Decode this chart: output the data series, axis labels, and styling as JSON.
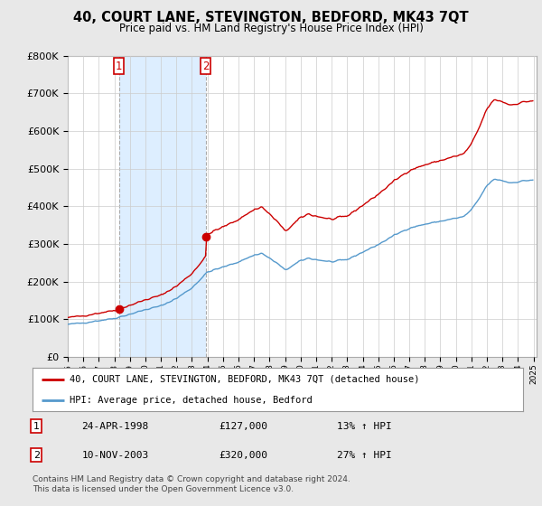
{
  "title": "40, COURT LANE, STEVINGTON, BEDFORD, MK43 7QT",
  "subtitle": "Price paid vs. HM Land Registry's House Price Index (HPI)",
  "purchase1_price": 127000,
  "purchase1_label": "24-APR-1998",
  "purchase1_hpi": "13% ↑ HPI",
  "purchase2_price": 320000,
  "purchase2_label": "10-NOV-2003",
  "purchase2_hpi": "27% ↑ HPI",
  "line1_label": "40, COURT LANE, STEVINGTON, BEDFORD, MK43 7QT (detached house)",
  "line2_label": "HPI: Average price, detached house, Bedford",
  "line1_color": "#cc0000",
  "line2_color": "#5599cc",
  "shade_color": "#ddeeff",
  "vline_color": "#aaaaaa",
  "footnote": "Contains HM Land Registry data © Crown copyright and database right 2024.\nThis data is licensed under the Open Government Licence v3.0.",
  "ylim": [
    0,
    800000
  ],
  "yticks": [
    0,
    100000,
    200000,
    300000,
    400000,
    500000,
    600000,
    700000,
    800000
  ],
  "bg_color": "#e8e8e8",
  "plot_bg_color": "#ffffff",
  "t1": 1998.292,
  "t2": 2003.875
}
